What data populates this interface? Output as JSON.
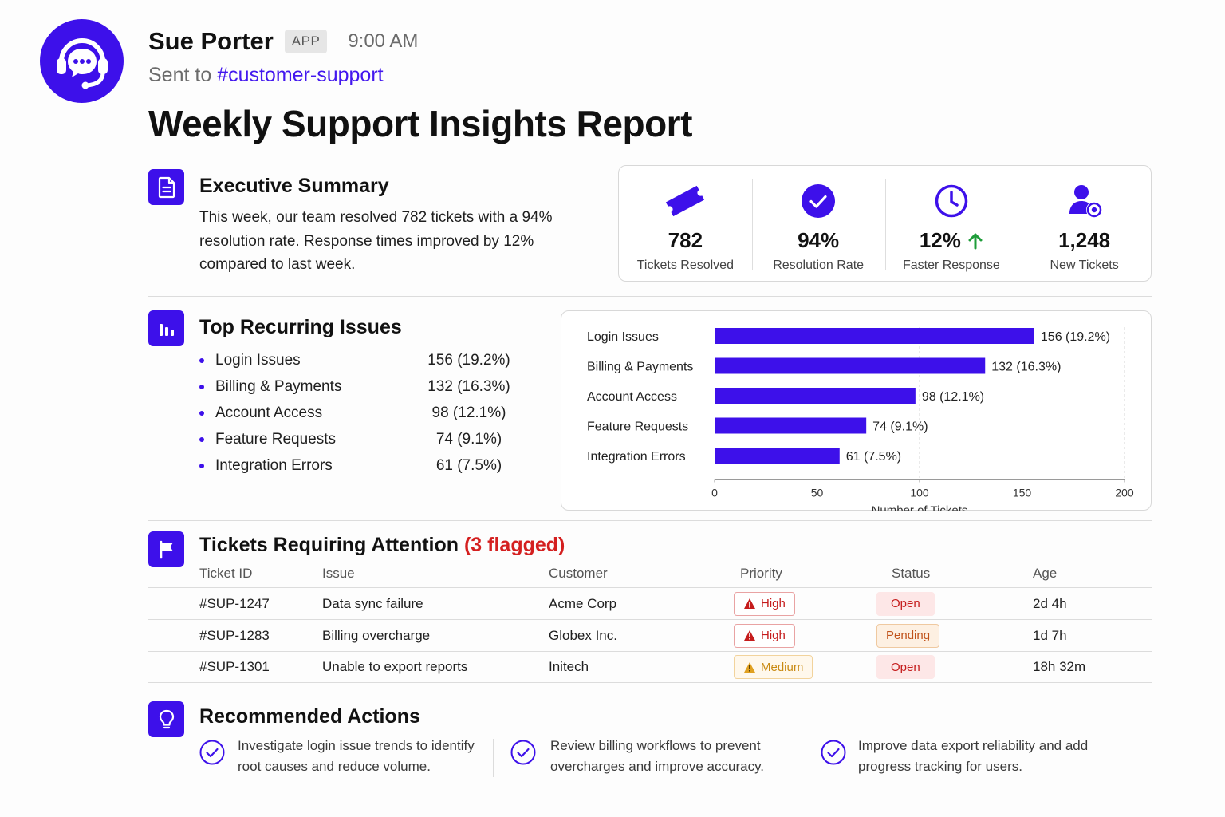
{
  "message": {
    "sender": "Sue Porter",
    "badge": "APP",
    "time": "9:00 AM",
    "sent_to_prefix": "Sent to ",
    "channel": "#customer-support"
  },
  "report": {
    "title": "Weekly Support Insights Report"
  },
  "executive_summary": {
    "title": "Executive Summary",
    "text": "This week, our team resolved 782 tickets with a 94% resolution rate. Response times improved by 12% compared to last week."
  },
  "stats": [
    {
      "value": "782",
      "label": "Tickets Resolved",
      "icon": "ticket-icon"
    },
    {
      "value": "94%",
      "label": "Resolution Rate",
      "icon": "check-circle-icon"
    },
    {
      "value": "12%",
      "label": "Faster Response",
      "icon": "clock-icon",
      "trend": "up"
    },
    {
      "value": "1,248",
      "label": "New Tickets",
      "icon": "new-user-icon"
    }
  ],
  "top_issues": {
    "title": "Top Recurring Issues",
    "items": [
      {
        "name": "Login Issues",
        "value": "156 (19.2%)"
      },
      {
        "name": "Billing & Payments",
        "value": "132 (16.3%)"
      },
      {
        "name": "Account Access",
        "value": "98 (12.1%)"
      },
      {
        "name": "Feature Requests",
        "value": "74 (9.1%)"
      },
      {
        "name": "Integration Errors",
        "value": "61 (7.5%)"
      }
    ]
  },
  "chart_data": {
    "type": "bar",
    "orientation": "horizontal",
    "categories": [
      "Login Issues",
      "Billing & Payments",
      "Account Access",
      "Feature Requests",
      "Integration Errors"
    ],
    "values": [
      156,
      132,
      98,
      74,
      61
    ],
    "data_labels": [
      "156 (19.2%)",
      "132 (16.3%)",
      "98 (12.1%)",
      "74 (9.1%)",
      "61 (7.5%)"
    ],
    "xlabel": "Number of Tickets",
    "xlim": [
      0,
      200
    ],
    "xticks": [
      0,
      50,
      100,
      150,
      200
    ],
    "grid": "vertical dashed",
    "color": "#3d10ea"
  },
  "attention": {
    "title": "Tickets Requiring Attention",
    "flag_note": "(3 flagged)",
    "columns": [
      "Ticket ID",
      "Issue",
      "Customer",
      "Priority",
      "Status",
      "Age"
    ],
    "rows": [
      {
        "id": "#SUP-1247",
        "issue": "Data sync failure",
        "customer": "Acme Corp",
        "priority": "High",
        "status": "Open",
        "age": "2d 4h"
      },
      {
        "id": "#SUP-1283",
        "issue": "Billing overcharge",
        "customer": "Globex Inc.",
        "priority": "High",
        "status": "Pending",
        "age": "1d 7h"
      },
      {
        "id": "#SUP-1301",
        "issue": "Unable to export reports",
        "customer": "Initech",
        "priority": "Medium",
        "status": "Open",
        "age": "18h 32m"
      }
    ]
  },
  "actions": {
    "title": "Recommended Actions",
    "items": [
      {
        "line1": "Investigate login issue trends to identify",
        "line2": "root causes and reduce volume."
      },
      {
        "line1": "Review billing workflows to prevent",
        "line2": "overcharges and improve accuracy."
      },
      {
        "line1": "Improve data export reliability and add",
        "line2": "progress tracking for users."
      }
    ]
  },
  "colors": {
    "brand": "#3d10ea",
    "channel_link": "#4318ee",
    "flag_red": "#d41f1f",
    "trend_green": "#1f9d3a"
  }
}
